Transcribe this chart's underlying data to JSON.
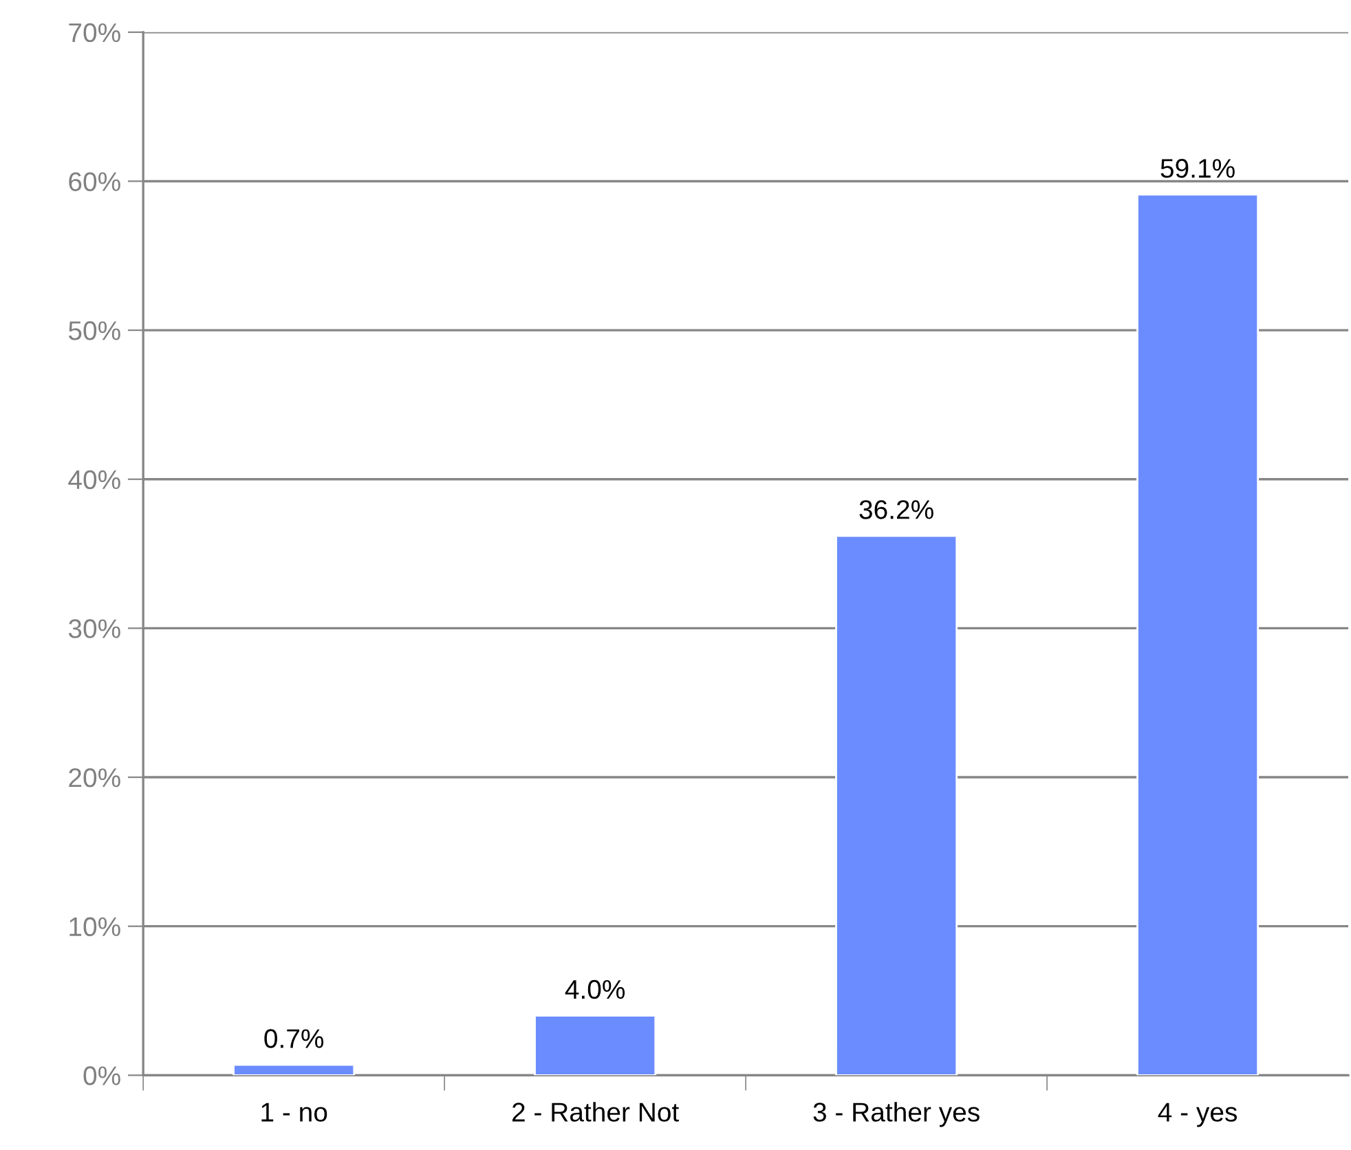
{
  "chart_data": {
    "type": "bar",
    "categories": [
      "1 - no",
      "2 - Rather Not",
      "3 - Rather yes",
      "4 - yes"
    ],
    "values": [
      0.7,
      4.0,
      36.2,
      59.1
    ],
    "color": "#6b8cff",
    "value_labels": [
      "0.7%",
      "4.0%",
      "36.2%",
      "59.1%"
    ],
    "ylim": [
      0,
      70
    ],
    "yticks": [
      {
        "value": 0,
        "label": "0%"
      },
      {
        "value": 10,
        "label": "10%"
      },
      {
        "value": 20,
        "label": "20%"
      },
      {
        "value": 30,
        "label": "30%"
      },
      {
        "value": 40,
        "label": "40%"
      },
      {
        "value": 50,
        "label": "50%"
      },
      {
        "value": 60,
        "label": "60%"
      },
      {
        "value": 70,
        "label": "70%"
      }
    ],
    "grid": "y"
  }
}
